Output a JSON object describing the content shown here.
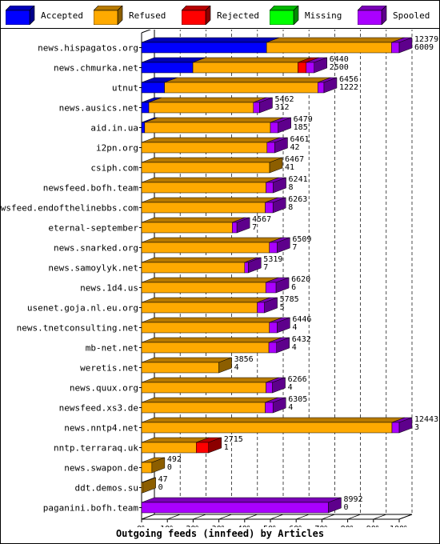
{
  "legend": [
    {
      "label": "Accepted",
      "color": "#0000ff"
    },
    {
      "label": "Refused",
      "color": "#ffaa00"
    },
    {
      "label": "Rejected",
      "color": "#ff0000"
    },
    {
      "label": "Missing",
      "color": "#00ff00"
    },
    {
      "label": "Spooled",
      "color": "#aa00ff"
    }
  ],
  "chart_data": {
    "type": "bar",
    "orientation": "horizontal",
    "stacked": true,
    "title": "",
    "xlabel": "Outgoing feeds (innfeed) by Articles",
    "ylabel": "",
    "xlim": [
      0,
      100
    ],
    "xtick_labels": [
      "0%",
      "10%",
      "20%",
      "30%",
      "40%",
      "50%",
      "60%",
      "70%",
      "80%",
      "90%",
      "100%"
    ],
    "grid": "vertical dashed",
    "legend_position": "top",
    "categories": [
      "news.hispagatos.org",
      "news.chmurka.net",
      "utnut",
      "news.ausics.net",
      "aid.in.ua",
      "i2pn.org",
      "csiph.com",
      "newsfeed.bofh.team",
      "newsfeed.endofthelinebbs.com",
      "eternal-september",
      "news.snarked.org",
      "news.samoylyk.net",
      "news.1d4.us",
      "usenet.goja.nl.eu.org",
      "news.tnetconsulting.net",
      "mb-net.net",
      "weretis.net",
      "news.quux.org",
      "newsfeed.xs3.de",
      "news.nntp4.net",
      "nntp.terraraq.uk",
      "news.swapon.de",
      "ddt.demos.su",
      "paganini.bofh.team"
    ],
    "offered": [
      "12379",
      "6440",
      "6456",
      "5462",
      "6479",
      "6461",
      "6467",
      "6241",
      "6263",
      "4567",
      "6509",
      "5319",
      "6620",
      "5785",
      "6446",
      "6432",
      "3856",
      "6266",
      "6305",
      "12443",
      "2715",
      "492",
      "47",
      "8992"
    ],
    "accepted_count": [
      "6009",
      "2500",
      "1222",
      "312",
      "185",
      "42",
      "41",
      "8",
      "8",
      "7",
      "7",
      "7",
      "6",
      "5",
      "4",
      "4",
      "4",
      "4",
      "4",
      "3",
      "1",
      "0",
      "0",
      "0"
    ],
    "series": [
      {
        "name": "Accepted",
        "color": "#0000ff",
        "values": [
          48.5,
          19.9,
          8.9,
          2.8,
          1.2,
          0,
          0,
          0,
          0,
          0,
          0,
          0,
          0,
          0,
          0,
          0,
          0,
          0,
          0,
          0,
          0,
          0,
          0,
          0
        ]
      },
      {
        "name": "Refused",
        "color": "#ffaa00",
        "values": [
          48.5,
          40.8,
          59.5,
          40.6,
          48.8,
          48.7,
          49.7,
          48.3,
          48.0,
          35.2,
          49.6,
          40.0,
          48.2,
          44.9,
          49.6,
          49.4,
          30.0,
          48.3,
          48.0,
          97.2,
          21.2,
          4.0,
          0.5,
          0
        ]
      },
      {
        "name": "Rejected",
        "color": "#ff0000",
        "values": [
          0,
          3.2,
          0,
          0,
          0,
          0,
          0,
          0,
          0,
          0,
          0,
          0,
          0,
          0,
          0,
          0,
          0,
          0,
          0,
          0,
          4.8,
          0,
          0,
          0
        ]
      },
      {
        "name": "Missing",
        "color": "#00ff00",
        "values": [
          0,
          0,
          0,
          0,
          0,
          0,
          0,
          0,
          0,
          0,
          0,
          0,
          0,
          0,
          0,
          0,
          0,
          0,
          0,
          0,
          0,
          0,
          0,
          0
        ]
      },
      {
        "name": "Spooled",
        "color": "#aa00ff",
        "values": [
          3.0,
          3.1,
          2.4,
          2.4,
          3.0,
          3.0,
          0,
          2.8,
          3.0,
          1.8,
          3.0,
          1.4,
          4.0,
          2.8,
          3.0,
          3.0,
          0,
          2.5,
          3.0,
          2.8,
          0,
          0,
          0,
          72.5
        ]
      }
    ]
  }
}
